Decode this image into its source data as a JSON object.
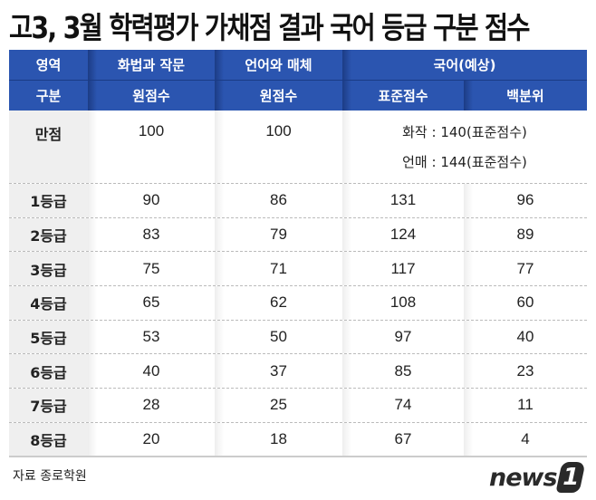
{
  "title": "고3, 3월 학력평가 가채점 결과 국어 등급 구분 점수",
  "header": {
    "row1": {
      "area": "영역",
      "col1": "화법과 작문",
      "col2": "언어와 매체",
      "col34": "국어(예상)"
    },
    "row2": {
      "division": "구분",
      "col1": "원점수",
      "col2": "원점수",
      "col3": "표준점수",
      "col4": "백분위"
    }
  },
  "full_score": {
    "label": "만점",
    "col1": "100",
    "col2": "100",
    "notes": [
      "화작 : 140(표준점수)",
      "언매 : 144(표준점수)"
    ]
  },
  "rows": [
    {
      "grade": "1등급",
      "hwajak": "90",
      "eonmae": "86",
      "standard": "131",
      "percentile": "96"
    },
    {
      "grade": "2등급",
      "hwajak": "83",
      "eonmae": "79",
      "standard": "124",
      "percentile": "89"
    },
    {
      "grade": "3등급",
      "hwajak": "75",
      "eonmae": "71",
      "standard": "117",
      "percentile": "77"
    },
    {
      "grade": "4등급",
      "hwajak": "65",
      "eonmae": "62",
      "standard": "108",
      "percentile": "60"
    },
    {
      "grade": "5등급",
      "hwajak": "53",
      "eonmae": "50",
      "standard": "97",
      "percentile": "40"
    },
    {
      "grade": "6등급",
      "hwajak": "40",
      "eonmae": "37",
      "standard": "85",
      "percentile": "23"
    },
    {
      "grade": "7등급",
      "hwajak": "28",
      "eonmae": "25",
      "standard": "74",
      "percentile": "11"
    },
    {
      "grade": "8등급",
      "hwajak": "20",
      "eonmae": "18",
      "standard": "67",
      "percentile": "4"
    }
  ],
  "footer": {
    "source": "자료 종로학원",
    "logo_text": "news",
    "logo_badge": "1"
  },
  "colors": {
    "header_bg": "#2b55b0",
    "label_bg": "#efefef",
    "text": "#222222"
  },
  "chart_data": {
    "type": "table",
    "title": "고3, 3월 학력평가 가채점 결과 국어 등급 구분 점수",
    "columns": [
      "구분",
      "화법과 작문 원점수",
      "언어와 매체 원점수",
      "국어(예상) 표준점수",
      "국어(예상) 백분위"
    ],
    "rows": [
      [
        "만점",
        "100",
        "100",
        "화작 : 140(표준점수) / 언매 : 144(표준점수)",
        ""
      ],
      [
        "1등급",
        90,
        86,
        131,
        96
      ],
      [
        "2등급",
        83,
        79,
        124,
        89
      ],
      [
        "3등급",
        75,
        71,
        117,
        77
      ],
      [
        "4등급",
        65,
        62,
        108,
        60
      ],
      [
        "5등급",
        53,
        50,
        97,
        40
      ],
      [
        "6등급",
        40,
        37,
        85,
        23
      ],
      [
        "7등급",
        28,
        25,
        74,
        11
      ],
      [
        "8등급",
        20,
        18,
        67,
        4
      ]
    ],
    "source": "자료 종로학원"
  }
}
